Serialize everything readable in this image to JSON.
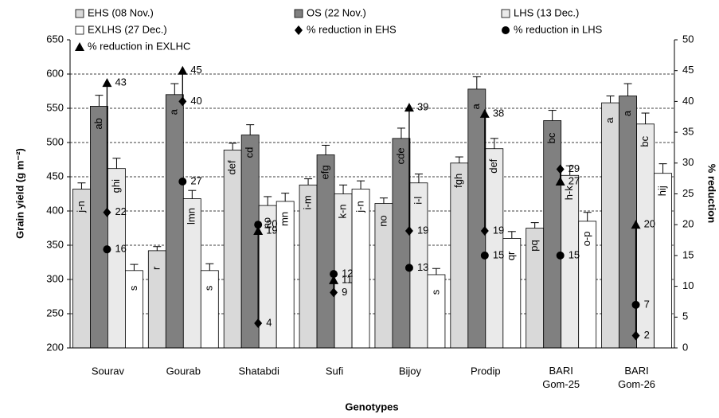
{
  "chart_data": {
    "type": "bar",
    "y_label": "Grain yield (g m⁻²)",
    "y2_label": "% reduction",
    "x_label": "Genotypes",
    "categories": [
      "Sourav",
      "Gourab",
      "Shatabdi",
      "Sufi",
      "Bijoy",
      "Prodip",
      "BARI Gom-25",
      "BARI Gom-26"
    ],
    "ylim": [
      200,
      650
    ],
    "yticks": [
      200,
      250,
      300,
      350,
      400,
      450,
      500,
      550,
      600,
      650
    ],
    "y2lim": [
      0,
      50
    ],
    "y2ticks": [
      0,
      5,
      10,
      15,
      20,
      25,
      30,
      35,
      40,
      45,
      50
    ],
    "grid": true,
    "series": [
      {
        "name": "EHS (08 Nov.)",
        "kind": "bar",
        "color": "#d9d9d9",
        "values": [
          432,
          342,
          489,
          438,
          411,
          470,
          375,
          558
        ],
        "errors": [
          9,
          6,
          10,
          9,
          8,
          9,
          8,
          10
        ],
        "letters": [
          "j-n",
          "r",
          "def",
          "i-m",
          "no",
          "fgh",
          "pq",
          "a"
        ]
      },
      {
        "name": "OS (22 Nov.)",
        "kind": "bar",
        "color": "#808080",
        "values": [
          553,
          570,
          511,
          482,
          506,
          578,
          532,
          568
        ],
        "errors": [
          16,
          16,
          15,
          14,
          15,
          18,
          15,
          18
        ],
        "letters": [
          "ab",
          "a",
          "cd",
          "efg",
          "cde",
          "a",
          "bc",
          "a"
        ]
      },
      {
        "name": "LHS (13 Dec.)",
        "kind": "bar",
        "color": "#eaeaea",
        "values": [
          462,
          418,
          408,
          425,
          441,
          491,
          452,
          527
        ],
        "errors": [
          15,
          12,
          13,
          13,
          13,
          15,
          14,
          16
        ],
        "letters": [
          "ghi",
          "lmn",
          "no",
          "k-n",
          "i-l",
          "def",
          "h-k",
          "bc"
        ]
      },
      {
        "name": "EXLHS (27 Dec.)",
        "kind": "bar",
        "color": "#ffffff",
        "values": [
          313,
          313,
          414,
          432,
          307,
          360,
          385,
          455
        ],
        "errors": [
          9,
          10,
          12,
          12,
          9,
          10,
          13,
          14
        ],
        "letters": [
          "s",
          "s",
          "mn",
          "j-n",
          "s",
          "qr",
          "o-p",
          "hij"
        ]
      },
      {
        "name": "% reduction in EHS",
        "kind": "diamond",
        "axis": "y2",
        "color": "#000000",
        "values": [
          22,
          40,
          4,
          9,
          19,
          19,
          29,
          2
        ]
      },
      {
        "name": "% reduction in LHS",
        "kind": "circle",
        "axis": "y2",
        "color": "#000000",
        "values": [
          16,
          27,
          20,
          12,
          13,
          15,
          15,
          7
        ]
      },
      {
        "name": "% reduction in EXLHC",
        "kind": "triangle",
        "axis": "y2",
        "color": "#000000",
        "values": [
          43,
          45,
          19,
          11,
          39,
          38,
          27,
          20
        ]
      }
    ]
  }
}
